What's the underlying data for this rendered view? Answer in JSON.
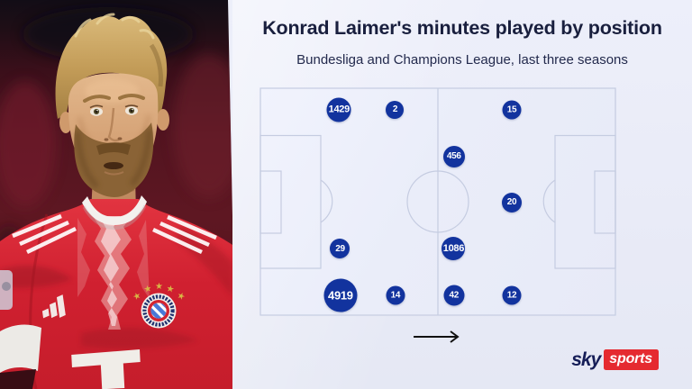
{
  "header": {
    "title": "Konrad Laimer's minutes played by position",
    "subtitle": "Bundesliga and Champions League, last three seasons"
  },
  "chart_data": {
    "type": "scatter",
    "title": "Konrad Laimer's minutes played by position",
    "subtitle": "Bundesliga and Champions League, last three seasons",
    "unit": "minutes",
    "layout": "football-pitch-horizontal",
    "attack_direction": "right",
    "points": [
      {
        "value": 1429,
        "x_pct": 22.3,
        "y_pct": 9.8,
        "d": 27
      },
      {
        "value": 2,
        "x_pct": 38.0,
        "y_pct": 9.8,
        "d": 20
      },
      {
        "value": 15,
        "x_pct": 70.7,
        "y_pct": 9.8,
        "d": 21
      },
      {
        "value": 456,
        "x_pct": 54.5,
        "y_pct": 30.3,
        "d": 24
      },
      {
        "value": 20,
        "x_pct": 70.7,
        "y_pct": 50.2,
        "d": 22
      },
      {
        "value": 29,
        "x_pct": 22.6,
        "y_pct": 70.6,
        "d": 22
      },
      {
        "value": 1086,
        "x_pct": 54.4,
        "y_pct": 70.6,
        "d": 26
      },
      {
        "value": 4919,
        "x_pct": 22.7,
        "y_pct": 90.9,
        "d": 37
      },
      {
        "value": 14,
        "x_pct": 38.1,
        "y_pct": 90.9,
        "d": 21
      },
      {
        "value": 42,
        "x_pct": 54.5,
        "y_pct": 90.9,
        "d": 23
      },
      {
        "value": 12,
        "x_pct": 70.7,
        "y_pct": 90.9,
        "d": 21
      }
    ]
  },
  "branding": {
    "sky_label": "sky",
    "sports_label": "sports"
  },
  "photo": {
    "crest_text": "FC BAYERN MÜNCHEN"
  },
  "colors": {
    "bubble": "#12339e",
    "pitch_line": "#c5cce1",
    "title_navy": "#191f3e",
    "sky_navy": "#151d57",
    "sports_red": "#e52a30",
    "jersey_red": "#d02030"
  }
}
